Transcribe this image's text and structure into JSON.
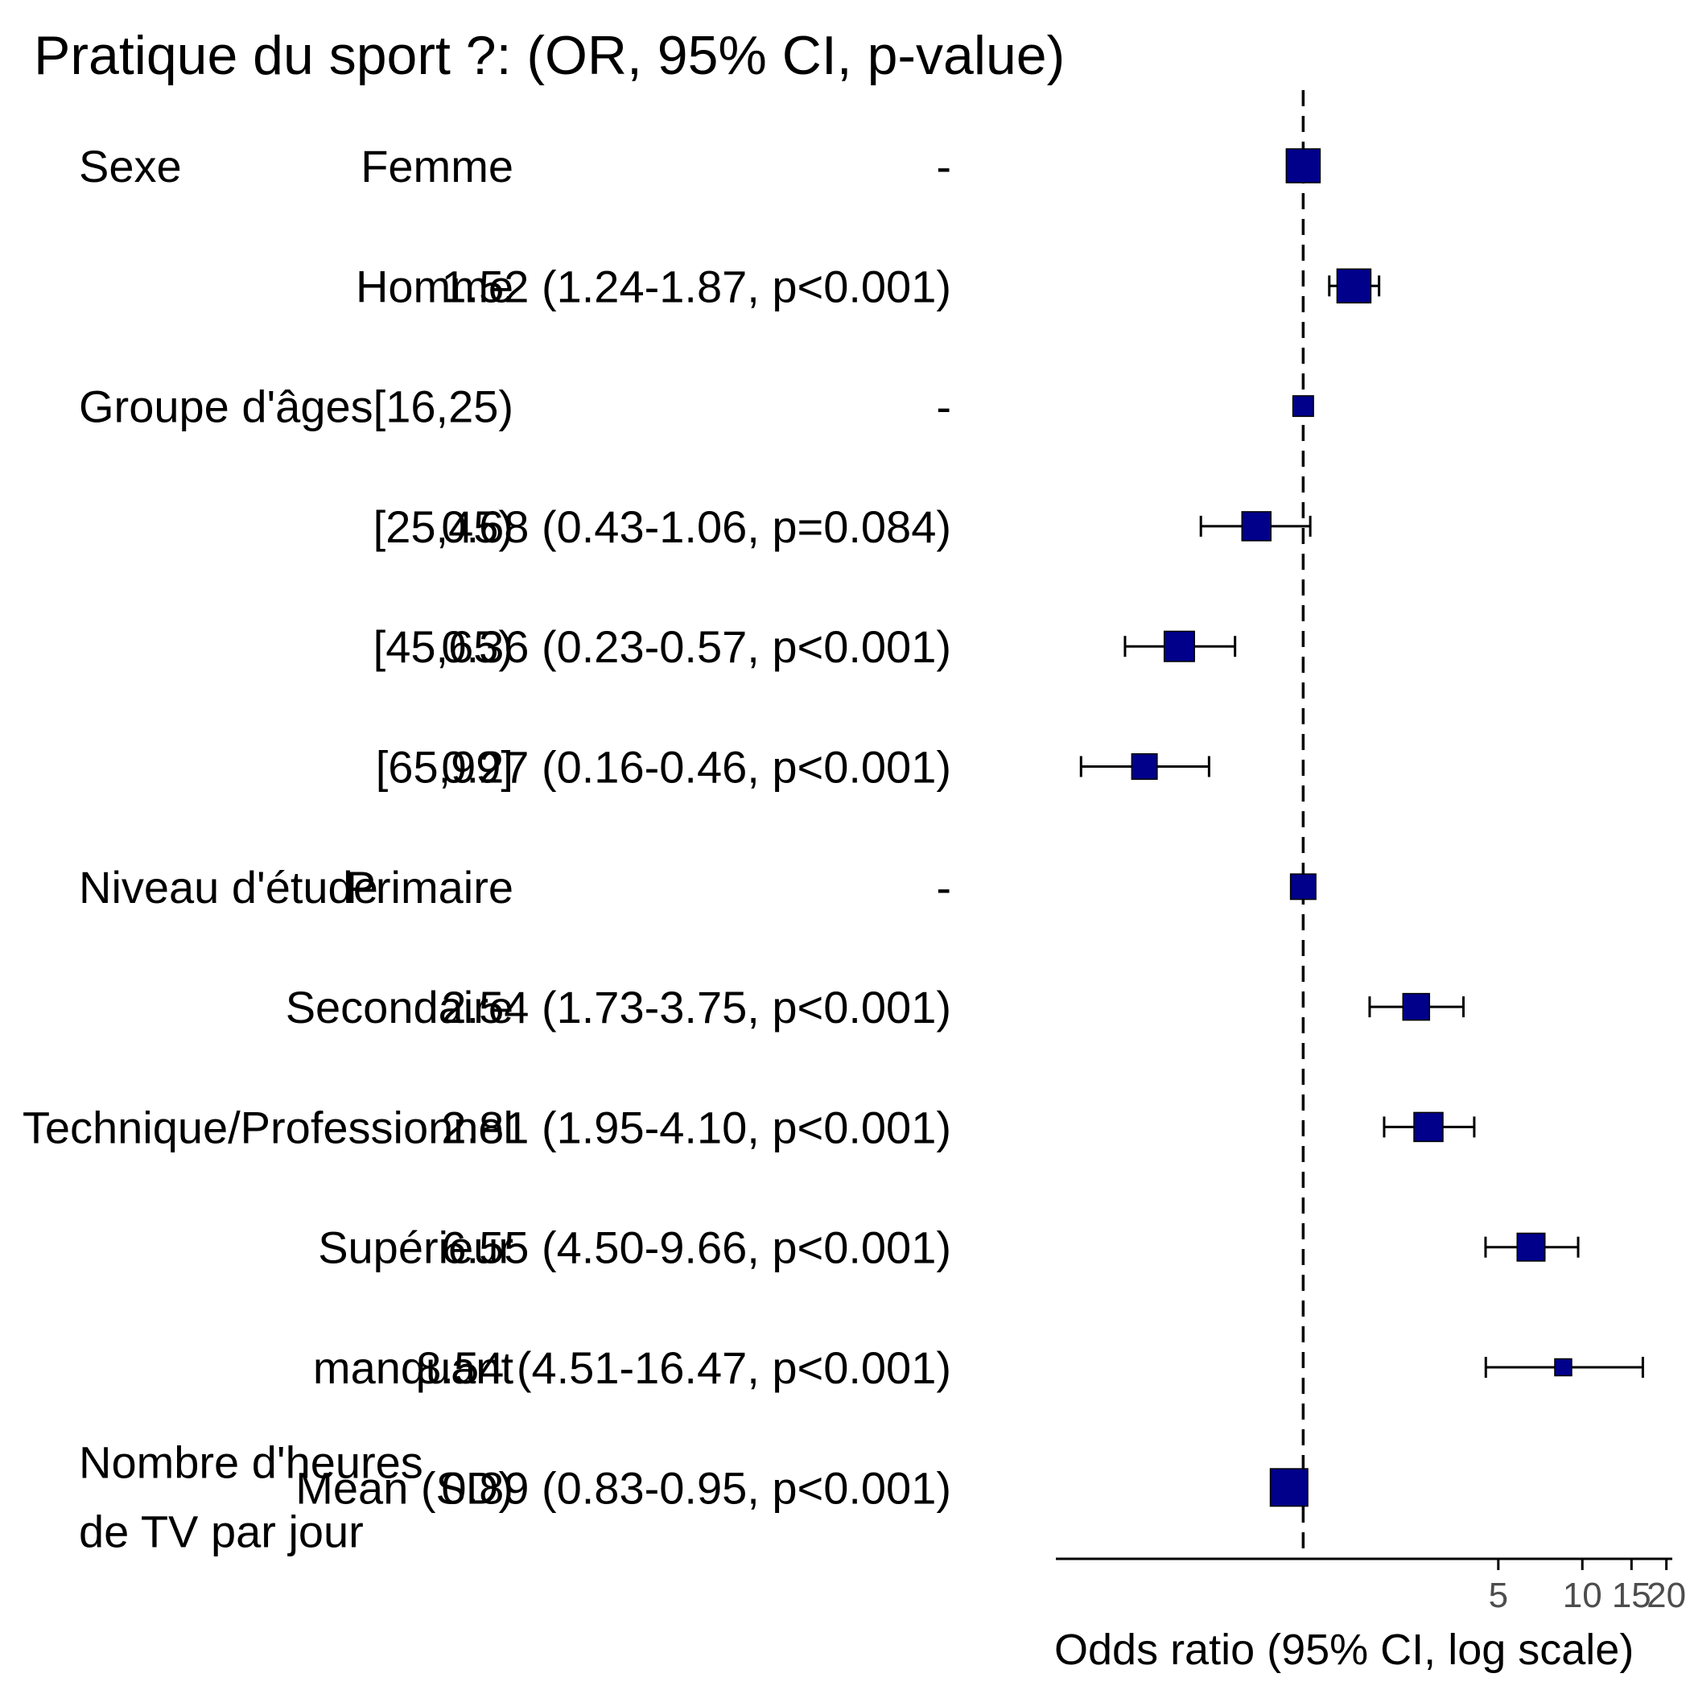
{
  "chart_data": {
    "type": "forest",
    "title": "Pratique du sport ?: (OR, 95% CI, p-value)",
    "xlabel": "Odds ratio (95% CI, log scale)",
    "x_scale": "log",
    "xlim": [
      0.13,
      21
    ],
    "reference_line": 1,
    "x_ticks": [
      {
        "value": 5,
        "label": "5"
      },
      {
        "value": 10,
        "label": "10"
      },
      {
        "value": 15,
        "label": "15"
      },
      {
        "value": 20,
        "label": "20"
      }
    ],
    "colors": {
      "box_fill": "#00008b",
      "box_stroke": "#000000",
      "line": "#000000"
    },
    "rows": [
      {
        "variable": "Sexe",
        "level": "Femme",
        "estimate_text": "-",
        "or": 1,
        "lo": null,
        "hi": null,
        "weight": 1.0
      },
      {
        "variable": "",
        "level": "Homme",
        "estimate_text": "1.52 (1.24-1.87, p<0.001)",
        "or": 1.52,
        "lo": 1.24,
        "hi": 1.87,
        "weight": 1.0
      },
      {
        "variable": "Groupe d'âges",
        "level": "[16,25)",
        "estimate_text": "-",
        "or": 1,
        "lo": null,
        "hi": null,
        "weight": 0.45
      },
      {
        "variable": "",
        "level": "[25,45)",
        "estimate_text": "0.68 (0.43-1.06, p=0.084)",
        "or": 0.68,
        "lo": 0.43,
        "hi": 1.06,
        "weight": 0.8
      },
      {
        "variable": "",
        "level": "[45,65)",
        "estimate_text": "0.36 (0.23-0.57, p<0.001)",
        "or": 0.36,
        "lo": 0.23,
        "hi": 0.57,
        "weight": 0.85
      },
      {
        "variable": "",
        "level": "[65,99]",
        "estimate_text": "0.27 (0.16-0.46, p<0.001)",
        "or": 0.27,
        "lo": 0.16,
        "hi": 0.46,
        "weight": 0.65
      },
      {
        "variable": "Niveau d'étude",
        "level": "Primaire",
        "estimate_text": "-",
        "or": 1,
        "lo": null,
        "hi": null,
        "weight": 0.65
      },
      {
        "variable": "",
        "level": "Secondaire",
        "estimate_text": "2.54 (1.73-3.75, p<0.001)",
        "or": 2.54,
        "lo": 1.73,
        "hi": 3.75,
        "weight": 0.7
      },
      {
        "variable": "",
        "level": "Technique/Professionnel",
        "estimate_text": "2.81 (1.95-4.10, p<0.001)",
        "or": 2.81,
        "lo": 1.95,
        "hi": 4.1,
        "weight": 0.8
      },
      {
        "variable": "",
        "level": "Supérieur",
        "estimate_text": "6.55 (4.50-9.66, p<0.001)",
        "or": 6.55,
        "lo": 4.5,
        "hi": 9.66,
        "weight": 0.75
      },
      {
        "variable": "",
        "level": "manquant",
        "estimate_text": "8.54 (4.51-16.47, p<0.001)",
        "or": 8.54,
        "lo": 4.51,
        "hi": 16.47,
        "weight": 0.3
      },
      {
        "variable": "Nombre d'heures\nde TV par jour",
        "level": "Mean (SD)",
        "estimate_text": "0.89 (0.83-0.95, p<0.001)",
        "or": 0.89,
        "lo": 0.83,
        "hi": 0.95,
        "weight": 1.15
      }
    ]
  }
}
